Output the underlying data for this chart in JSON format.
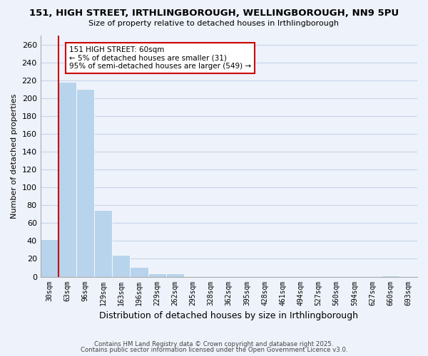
{
  "title": "151, HIGH STREET, IRTHLINGBOROUGH, WELLINGBOROUGH, NN9 5PU",
  "subtitle": "Size of property relative to detached houses in Irthlingborough",
  "xlabel": "Distribution of detached houses by size in Irthlingborough",
  "ylabel": "Number of detached properties",
  "bar_values": [
    42,
    218,
    210,
    75,
    24,
    11,
    4,
    4,
    0,
    0,
    0,
    0,
    0,
    0,
    0,
    0,
    0,
    0,
    0,
    1,
    0
  ],
  "bar_labels": [
    "30sqm",
    "63sqm",
    "96sqm",
    "129sqm",
    "163sqm",
    "196sqm",
    "229sqm",
    "262sqm",
    "295sqm",
    "328sqm",
    "362sqm",
    "395sqm",
    "428sqm",
    "461sqm",
    "494sqm",
    "527sqm",
    "560sqm",
    "594sqm",
    "627sqm",
    "660sqm",
    "693sqm"
  ],
  "bar_color": "#b8d4ec",
  "vline_color": "#cc0000",
  "vline_x": 0.5,
  "ylim": [
    0,
    270
  ],
  "yticks": [
    0,
    20,
    40,
    60,
    80,
    100,
    120,
    140,
    160,
    180,
    200,
    220,
    240,
    260
  ],
  "annotation_title": "151 HIGH STREET: 60sqm",
  "annotation_line1": "← 5% of detached houses are smaller (31)",
  "annotation_line2": "95% of semi-detached houses are larger (549) →",
  "grid_color": "#c8d4e8",
  "bg_color": "#eef2fa",
  "footnote1": "Contains HM Land Registry data © Crown copyright and database right 2025.",
  "footnote2": "Contains public sector information licensed under the Open Government Licence v3.0."
}
